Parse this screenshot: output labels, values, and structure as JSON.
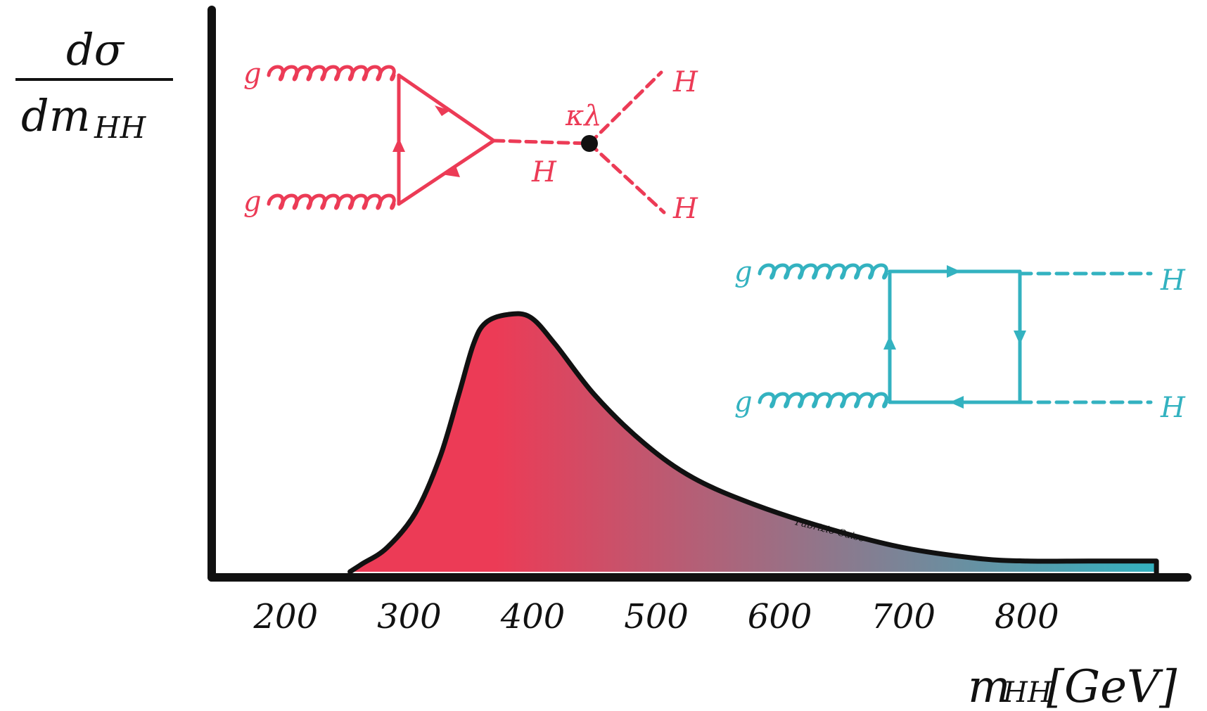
{
  "colors": {
    "triangle": "#ec3b56",
    "box": "#33b2c0",
    "axis": "#111111"
  },
  "y_label": {
    "numerator": "dσ",
    "denominator": "dm",
    "subscript": "HH"
  },
  "x_label": {
    "main": "m",
    "subscript": "HH",
    "unit": "[GeV]"
  },
  "triangle_diagram": {
    "gluon_top": "g",
    "gluon_bottom": "g",
    "propagator": "H",
    "coupling": "κλ",
    "out_top": "H",
    "out_bottom": "H"
  },
  "box_diagram": {
    "gluon_top": "g",
    "gluon_bottom": "g",
    "out_top": "H",
    "out_bottom": "H"
  },
  "signature": "Fabrizio Caiso",
  "chart_data": {
    "type": "area",
    "title": "",
    "xlabel": "mHH [GeV]",
    "ylabel": "dσ/dmHH",
    "xlim": [
      140,
      930
    ],
    "ylim": [
      0,
      1.0
    ],
    "ticks": [
      200,
      300,
      400,
      500,
      600,
      700,
      800
    ],
    "x": [
      252,
      262,
      282,
      305,
      325,
      340,
      352,
      362,
      380,
      398,
      418,
      450,
      490,
      530,
      580,
      640,
      700,
      760,
      800,
      850,
      905
    ],
    "y": [
      0.0,
      0.03,
      0.09,
      0.22,
      0.43,
      0.66,
      0.85,
      0.93,
      0.96,
      0.95,
      0.85,
      0.66,
      0.48,
      0.35,
      0.25,
      0.16,
      0.09,
      0.05,
      0.04,
      0.04,
      0.04
    ],
    "gradient": [
      "#ec3b56",
      "#33b2c0"
    ]
  }
}
